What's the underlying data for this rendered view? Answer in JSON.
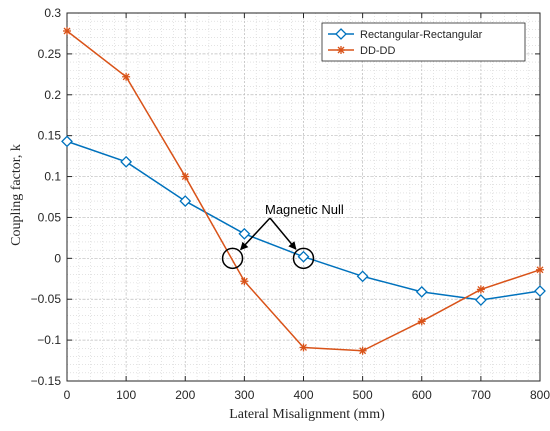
{
  "chart_data": {
    "type": "line",
    "xlabel": "Lateral Misalignment (mm)",
    "ylabel": "Coupling factor, k",
    "xlim": [
      0,
      800
    ],
    "ylim": [
      -0.15,
      0.3
    ],
    "xticks": [
      0,
      100,
      200,
      300,
      400,
      500,
      600,
      700,
      800
    ],
    "yticks": [
      -0.15,
      -0.1,
      -0.05,
      0,
      0.05,
      0.1,
      0.15,
      0.2,
      0.25,
      0.3
    ],
    "ytick_labels": [
      "−0.15",
      "−0.1",
      "−0.05",
      "0",
      "0.05",
      "0.1",
      "0.15",
      "0.2",
      "0.25",
      "0.3"
    ],
    "grid": true,
    "minor_grid": true,
    "legend_position": "top-right",
    "series": [
      {
        "name": "Rectangular-Rectangular",
        "color": "#0072BD",
        "marker": "diamond",
        "x": [
          0,
          100,
          200,
          300,
          400,
          500,
          600,
          700,
          800
        ],
        "y": [
          0.143,
          0.118,
          0.07,
          0.03,
          0.002,
          -0.022,
          -0.041,
          -0.051,
          -0.04
        ]
      },
      {
        "name": "DD-DD",
        "color": "#D95319",
        "marker": "asterisk",
        "x": [
          0,
          100,
          200,
          300,
          400,
          500,
          600,
          700,
          800
        ],
        "y": [
          0.278,
          0.222,
          0.1,
          -0.028,
          -0.109,
          -0.113,
          -0.077,
          -0.038,
          -0.014
        ]
      }
    ],
    "annotations": [
      {
        "text": "Magnetic Null",
        "targets": [
          [
            280,
            0
          ],
          [
            400,
            0
          ]
        ]
      }
    ]
  }
}
